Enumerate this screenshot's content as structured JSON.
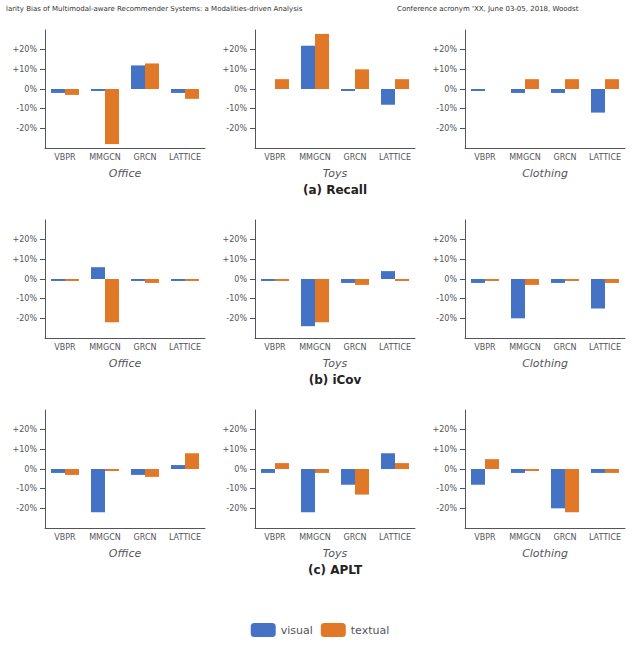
{
  "annotations": [
    "larity Bias of Multimodal-aware Recommender Systems: a Modalities-driven Analysis",
    "Conference acronym 'XX, June 03-05, 2018, Woodst"
  ],
  "legend": "bottom",
  "chart_data": [
    {
      "type": "bar",
      "xlabel": "Office",
      "categories": [
        "VBPR",
        "MMGCN",
        "GRCN",
        "LATTICE"
      ],
      "series": [
        {
          "name": "visual",
          "color": "#4472c4",
          "values": [
            -2,
            -1,
            12,
            -2
          ]
        },
        {
          "name": "textual",
          "color": "#e07828",
          "values": [
            -3,
            -28,
            13,
            -5
          ]
        }
      ],
      "ylim": [
        -30,
        30
      ],
      "yticks": [
        {
          "value": -20,
          "label": "-20%"
        },
        {
          "value": -10,
          "label": "-10%"
        },
        {
          "value": 0,
          "label": "0%"
        },
        {
          "value": 10,
          "label": "+10%"
        },
        {
          "value": 20,
          "label": "+20%"
        }
      ],
      "grid": false
    },
    {
      "type": "bar",
      "xlabel": "Toys",
      "annotations": [
        "(a) Recall"
      ],
      "categories": [
        "VBPR",
        "MMGCN",
        "GRCN",
        "LATTICE"
      ],
      "series": [
        {
          "name": "visual",
          "color": "#4472c4",
          "values": [
            0,
            22,
            -1,
            -8
          ]
        },
        {
          "name": "textual",
          "color": "#e07828",
          "values": [
            5,
            28,
            10,
            5
          ]
        }
      ],
      "ylim": [
        -30,
        30
      ],
      "yticks": [
        {
          "value": -20,
          "label": "-20%"
        },
        {
          "value": -10,
          "label": "-10%"
        },
        {
          "value": 0,
          "label": "0%"
        },
        {
          "value": 10,
          "label": "+10%"
        },
        {
          "value": 20,
          "label": "+20%"
        }
      ],
      "grid": false
    },
    {
      "type": "bar",
      "xlabel": "Clothing",
      "categories": [
        "VBPR",
        "MMGCN",
        "GRCN",
        "LATTICE"
      ],
      "series": [
        {
          "name": "visual",
          "color": "#4472c4",
          "values": [
            -1,
            -2,
            -2,
            -12
          ]
        },
        {
          "name": "textual",
          "color": "#e07828",
          "values": [
            0,
            5,
            5,
            5
          ]
        }
      ],
      "ylim": [
        -30,
        30
      ],
      "yticks": [
        {
          "value": -20,
          "label": "-20%"
        },
        {
          "value": -10,
          "label": "-10%"
        },
        {
          "value": 0,
          "label": "0%"
        },
        {
          "value": 10,
          "label": "+10%"
        },
        {
          "value": 20,
          "label": "+20%"
        }
      ],
      "grid": false
    },
    {
      "type": "bar",
      "xlabel": "Office",
      "categories": [
        "VBPR",
        "MMGCN",
        "GRCN",
        "LATTICE"
      ],
      "series": [
        {
          "name": "visual",
          "color": "#4472c4",
          "values": [
            -1,
            6,
            -1,
            -1
          ]
        },
        {
          "name": "textual",
          "color": "#e07828",
          "values": [
            -1,
            -22,
            -2,
            -1
          ]
        }
      ],
      "ylim": [
        -30,
        30
      ],
      "yticks": [
        {
          "value": -20,
          "label": "-20%"
        },
        {
          "value": -10,
          "label": "-10%"
        },
        {
          "value": 0,
          "label": "0%"
        },
        {
          "value": 10,
          "label": "+10%"
        },
        {
          "value": 20,
          "label": "+20%"
        }
      ],
      "grid": false
    },
    {
      "type": "bar",
      "xlabel": "Toys",
      "annotations": [
        "(b) iCov"
      ],
      "categories": [
        "VBPR",
        "MMGCN",
        "GRCN",
        "LATTICE"
      ],
      "series": [
        {
          "name": "visual",
          "color": "#4472c4",
          "values": [
            -1,
            -24,
            -2,
            4
          ]
        },
        {
          "name": "textual",
          "color": "#e07828",
          "values": [
            -1,
            -22,
            -3,
            -1
          ]
        }
      ],
      "ylim": [
        -30,
        30
      ],
      "yticks": [
        {
          "value": -20,
          "label": "-20%"
        },
        {
          "value": -10,
          "label": "-10%"
        },
        {
          "value": 0,
          "label": "0%"
        },
        {
          "value": 10,
          "label": "+10%"
        },
        {
          "value": 20,
          "label": "+20%"
        }
      ],
      "grid": false
    },
    {
      "type": "bar",
      "xlabel": "Clothing",
      "categories": [
        "VBPR",
        "MMGCN",
        "GRCN",
        "LATTICE"
      ],
      "series": [
        {
          "name": "visual",
          "color": "#4472c4",
          "values": [
            -2,
            -20,
            -2,
            -15
          ]
        },
        {
          "name": "textual",
          "color": "#e07828",
          "values": [
            -1,
            -3,
            -1,
            -2
          ]
        }
      ],
      "ylim": [
        -30,
        30
      ],
      "yticks": [
        {
          "value": -20,
          "label": "-20%"
        },
        {
          "value": -10,
          "label": "-10%"
        },
        {
          "value": 0,
          "label": "0%"
        },
        {
          "value": 10,
          "label": "+10%"
        },
        {
          "value": 20,
          "label": "+20%"
        }
      ],
      "grid": false
    },
    {
      "type": "bar",
      "xlabel": "Office",
      "categories": [
        "VBPR",
        "MMGCN",
        "GRCN",
        "LATTICE"
      ],
      "series": [
        {
          "name": "visual",
          "color": "#4472c4",
          "values": [
            -2,
            -22,
            -3,
            2
          ]
        },
        {
          "name": "textual",
          "color": "#e07828",
          "values": [
            -3,
            -1,
            -4,
            8
          ]
        }
      ],
      "ylim": [
        -30,
        30
      ],
      "yticks": [
        {
          "value": -20,
          "label": "-20%"
        },
        {
          "value": -10,
          "label": "-10%"
        },
        {
          "value": 0,
          "label": "0%"
        },
        {
          "value": 10,
          "label": "+10%"
        },
        {
          "value": 20,
          "label": "+20%"
        }
      ],
      "grid": false
    },
    {
      "type": "bar",
      "xlabel": "Toys",
      "annotations": [
        "(c) APLT"
      ],
      "categories": [
        "VBPR",
        "MMGCN",
        "GRCN",
        "LATTICE"
      ],
      "series": [
        {
          "name": "visual",
          "color": "#4472c4",
          "values": [
            -2,
            -22,
            -8,
            8
          ]
        },
        {
          "name": "textual",
          "color": "#e07828",
          "values": [
            3,
            -2,
            -13,
            3
          ]
        }
      ],
      "ylim": [
        -30,
        30
      ],
      "yticks": [
        {
          "value": -20,
          "label": "-20%"
        },
        {
          "value": -10,
          "label": "-10%"
        },
        {
          "value": 0,
          "label": "0%"
        },
        {
          "value": 10,
          "label": "+10%"
        },
        {
          "value": 20,
          "label": "+20%"
        }
      ],
      "grid": false
    },
    {
      "type": "bar",
      "xlabel": "Clothing",
      "categories": [
        "VBPR",
        "MMGCN",
        "GRCN",
        "LATTICE"
      ],
      "series": [
        {
          "name": "visual",
          "color": "#4472c4",
          "values": [
            -8,
            -2,
            -20,
            -2
          ]
        },
        {
          "name": "textual",
          "color": "#e07828",
          "values": [
            5,
            -1,
            -22,
            -2
          ]
        }
      ],
      "ylim": [
        -30,
        30
      ],
      "yticks": [
        {
          "value": -20,
          "label": "-20%"
        },
        {
          "value": -10,
          "label": "-10%"
        },
        {
          "value": 0,
          "label": "0%"
        },
        {
          "value": 10,
          "label": "+10%"
        },
        {
          "value": 20,
          "label": "+20%"
        }
      ],
      "grid": false
    }
  ]
}
